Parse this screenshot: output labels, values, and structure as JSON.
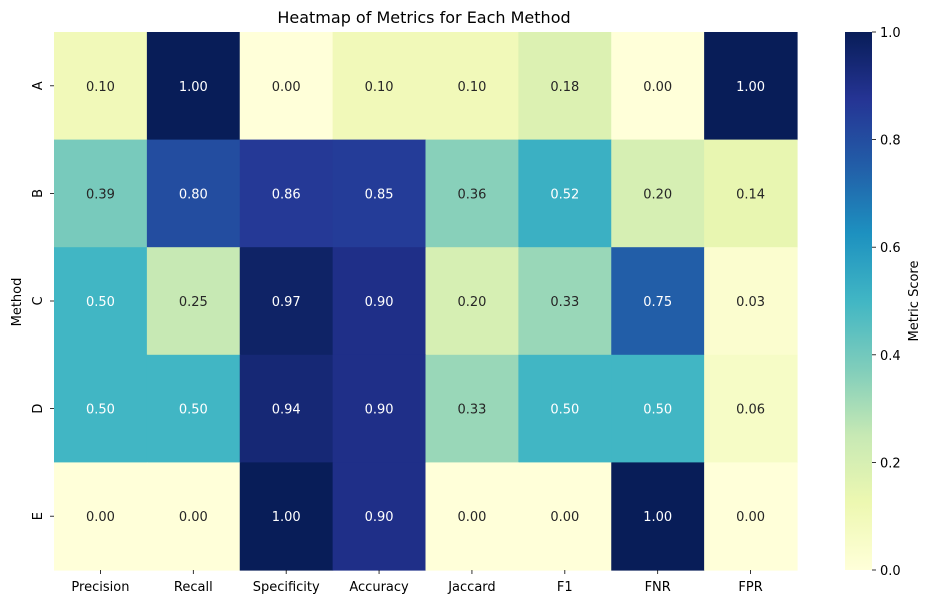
{
  "chart_data": {
    "type": "heatmap",
    "title": "Heatmap of Metrics for Each Method",
    "ylabel": "Method",
    "xlabel": "",
    "x_categories": [
      "Precision",
      "Recall",
      "Specificity",
      "Accuracy",
      "Jaccard",
      "F1",
      "FNR",
      "FPR"
    ],
    "y_categories": [
      "A",
      "B",
      "C",
      "D",
      "E"
    ],
    "values": [
      [
        0.1,
        1.0,
        0.0,
        0.1,
        0.1,
        0.18,
        0.0,
        1.0
      ],
      [
        0.39,
        0.8,
        0.86,
        0.85,
        0.36,
        0.52,
        0.2,
        0.14
      ],
      [
        0.5,
        0.25,
        0.97,
        0.9,
        0.2,
        0.33,
        0.75,
        0.03
      ],
      [
        0.5,
        0.5,
        0.94,
        0.9,
        0.33,
        0.5,
        0.5,
        0.06
      ],
      [
        0.0,
        0.0,
        1.0,
        0.9,
        0.0,
        0.0,
        1.0,
        0.0
      ]
    ],
    "value_format": "0.00",
    "colormap": "YlGnBu",
    "colormap_stops": [
      "#ffffd9",
      "#edf8b1",
      "#c7e9b4",
      "#7fcdbb",
      "#41b6c4",
      "#1d91c0",
      "#225ea8",
      "#253494",
      "#081d58"
    ],
    "text_color_light": "#ffffff",
    "text_color_dark": "#262626",
    "colorbar": {
      "label": "Metric Score",
      "range": [
        0,
        1
      ],
      "ticks": [
        "0.0",
        "0.2",
        "0.4",
        "0.6",
        "0.8",
        "1.0"
      ]
    }
  }
}
